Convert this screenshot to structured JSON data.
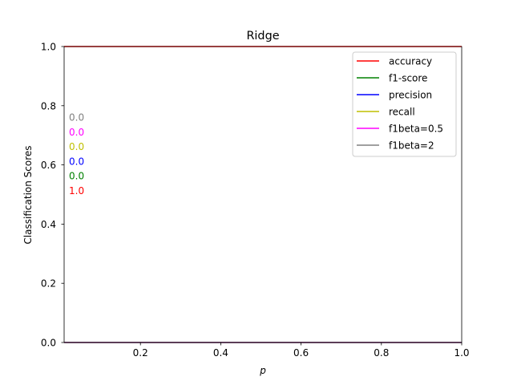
{
  "chart_data": {
    "type": "line",
    "title": "Ridge",
    "xlabel": "p",
    "ylabel": "Classification Scores",
    "xlim": [
      0.01,
      1.0
    ],
    "ylim": [
      0.0,
      1.0
    ],
    "x_ticks": [
      0.2,
      0.4,
      0.6,
      0.8,
      1.0
    ],
    "x_tick_labels": [
      "0.2",
      "0.4",
      "0.6",
      "0.8",
      "1.0"
    ],
    "y_ticks": [
      0.0,
      0.2,
      0.4,
      0.6,
      0.8,
      1.0
    ],
    "y_tick_labels": [
      "0.0",
      "0.2",
      "0.4",
      "0.6",
      "0.8",
      "1.0"
    ],
    "grid": false,
    "legend_position": "top-right",
    "series": [
      {
        "name": "accuracy",
        "color": "#ff0000",
        "x": [
          0.01,
          1.0
        ],
        "values": [
          1.0,
          1.0
        ],
        "annotation": "1.0"
      },
      {
        "name": "f1-score",
        "color": "#008000",
        "x": [
          0.01,
          1.0
        ],
        "values": [
          0.0,
          0.0
        ],
        "annotation": "0.0"
      },
      {
        "name": "precision",
        "color": "#0000ff",
        "x": [
          0.01,
          1.0
        ],
        "values": [
          0.0,
          0.0
        ],
        "annotation": "0.0"
      },
      {
        "name": "recall",
        "color": "#bfbf00",
        "x": [
          0.01,
          1.0
        ],
        "values": [
          0.0,
          0.0
        ],
        "annotation": "0.0"
      },
      {
        "name": "f1beta=0.5",
        "color": "#ff00ff",
        "x": [
          0.01,
          1.0
        ],
        "values": [
          0.0,
          0.0
        ],
        "annotation": "0.0"
      },
      {
        "name": "f1beta=2",
        "color": "#808080",
        "x": [
          0.01,
          1.0
        ],
        "values": [
          0.0,
          0.0
        ],
        "annotation": "0.0"
      }
    ]
  }
}
